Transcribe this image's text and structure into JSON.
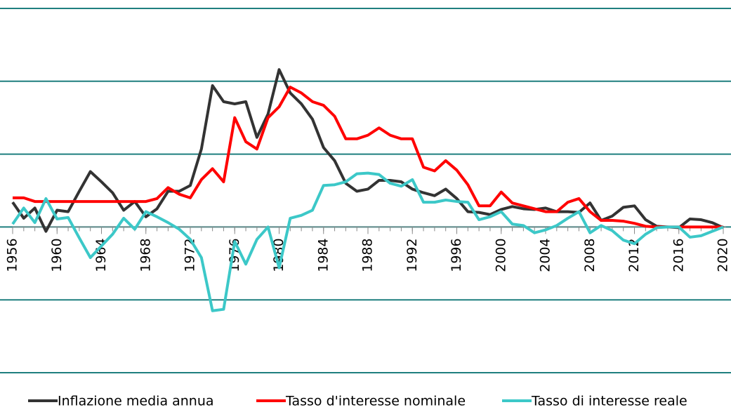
{
  "chart_data": {
    "type": "line",
    "x": [
      1956,
      1957,
      1958,
      1959,
      1960,
      1961,
      1962,
      1963,
      1964,
      1965,
      1966,
      1967,
      1968,
      1969,
      1970,
      1971,
      1972,
      1973,
      1974,
      1975,
      1976,
      1977,
      1978,
      1979,
      1980,
      1981,
      1982,
      1983,
      1984,
      1985,
      1986,
      1987,
      1988,
      1989,
      1990,
      1991,
      1992,
      1993,
      1994,
      1995,
      1996,
      1997,
      1998,
      1999,
      2000,
      2001,
      2002,
      2003,
      2004,
      2005,
      2006,
      2007,
      2008,
      2009,
      2010,
      2011,
      2012,
      2013,
      2014,
      2015,
      2016,
      2017,
      2018,
      2019,
      2020
    ],
    "series": [
      {
        "name": "Inflazione media annua",
        "color": "#333333",
        "values": [
          3.4,
          1.2,
          2.6,
          -0.6,
          2.3,
          2.1,
          4.9,
          7.6,
          6.2,
          4.7,
          2.3,
          3.5,
          1.4,
          2.5,
          4.9,
          4.9,
          5.7,
          10.7,
          19.4,
          17.2,
          16.9,
          17.2,
          12.3,
          15.5,
          21.6,
          18.4,
          16.9,
          14.8,
          10.9,
          9.1,
          6.0,
          4.9,
          5.2,
          6.4,
          6.4,
          6.2,
          5.2,
          4.7,
          4.3,
          5.2,
          3.9,
          2.1,
          2.0,
          1.7,
          2.4,
          2.8,
          2.5,
          2.4,
          2.6,
          2.1,
          2.1,
          2.0,
          3.3,
          0.9,
          1.5,
          2.7,
          2.9,
          1.0,
          0.1,
          0,
          -0.1,
          1.1,
          1.0,
          0.6,
          -0.1
        ]
      },
      {
        "name": "Tasso d'interesse nominale",
        "color": "#ff0000",
        "values": [
          4.0,
          4.0,
          3.5,
          3.5,
          3.5,
          3.5,
          3.5,
          3.5,
          3.5,
          3.5,
          3.5,
          3.5,
          3.5,
          3.9,
          5.4,
          4.5,
          4.0,
          6.5,
          8.0,
          6.2,
          15.0,
          11.7,
          10.7,
          15.0,
          16.5,
          19.2,
          18.4,
          17.2,
          16.7,
          15.2,
          12.1,
          12.1,
          12.6,
          13.6,
          12.6,
          12.1,
          12.1,
          8.2,
          7.7,
          9.1,
          7.8,
          5.8,
          2.9,
          2.9,
          4.8,
          3.3,
          2.9,
          2.5,
          2.1,
          2.1,
          3.4,
          3.9,
          2.1,
          0.9,
          0.9,
          0.8,
          0.5,
          0.1,
          0,
          0,
          0,
          0,
          0,
          0,
          0
        ]
      },
      {
        "name": "Tasso di interesse reale",
        "color": "#3cc8c8",
        "values": [
          0.4,
          2.6,
          0.6,
          3.9,
          1.1,
          1.3,
          -1.5,
          -4.2,
          -2.6,
          -1.0,
          1.2,
          -0.3,
          2.1,
          1.4,
          0.6,
          -0.3,
          -1.7,
          -4.2,
          -11.5,
          -11.3,
          -2.0,
          -5.1,
          -1.7,
          0,
          -5.6,
          1.2,
          1.6,
          2.3,
          5.7,
          5.8,
          6.2,
          7.3,
          7.4,
          7.2,
          6.0,
          5.6,
          6.5,
          3.4,
          3.4,
          3.7,
          3.5,
          3.4,
          1.0,
          1.4,
          2.1,
          0.4,
          0.2,
          -0.8,
          -0.4,
          0.2,
          1.2,
          2.1,
          -0.8,
          0.2,
          -0.5,
          -1.8,
          -2.3,
          -1.0,
          -0.1,
          0,
          0,
          -1.4,
          -1.2,
          -0.6,
          0
        ]
      }
    ],
    "xlim": [
      1956,
      2020
    ],
    "xticks": [
      1956,
      1960,
      1964,
      1968,
      1972,
      1976,
      1980,
      1984,
      1988,
      1992,
      1996,
      2000,
      2004,
      2008,
      2012,
      2016,
      2020
    ],
    "ylim": [
      -20,
      30
    ],
    "yticks": [
      -20,
      -10,
      0,
      10,
      20,
      30
    ],
    "grid": true,
    "legend": "bottom"
  }
}
